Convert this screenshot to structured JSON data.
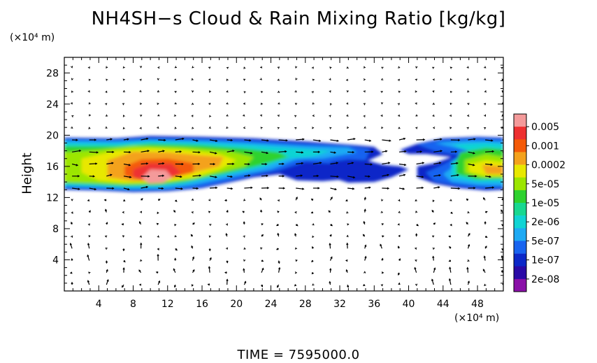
{
  "chart_data": {
    "type": "heatmap",
    "title": "NH4SH−s Cloud & Rain Mixing Ratio [kg/kg]",
    "ylabel": "Height",
    "x_unit": "(×10⁴ m)",
    "y_unit": "(×10⁴ m)",
    "xlim": [
      0,
      51
    ],
    "ylim": [
      0,
      30
    ],
    "x_ticks": [
      4,
      8,
      12,
      16,
      20,
      24,
      28,
      32,
      36,
      40,
      44,
      48
    ],
    "y_ticks": [
      4,
      8,
      12,
      16,
      20,
      24,
      28
    ],
    "colorbar": {
      "labels": [
        "0.005",
        "0.001",
        "0.0002",
        "5e-05",
        "1e-05",
        "2e-06",
        "5e-07",
        "1e-07",
        "2e-08"
      ],
      "colors": [
        "#f49a9a",
        "#ee3030",
        "#f45a08",
        "#f4a21c",
        "#e8e800",
        "#9ce600",
        "#2ed22e",
        "#18d890",
        "#10d4d4",
        "#1eaaf4",
        "#1864f0",
        "#0c28c8",
        "#2a0aa6",
        "#8a10a8"
      ]
    },
    "cloud_layer": {
      "description_regions": [
        {
          "x_range": [
            0,
            37
          ],
          "y_range": [
            13,
            20
          ],
          "peak_level": "0.005",
          "peak_x": [
            9,
            13
          ],
          "peak_y": [
            13.5,
            16
          ]
        },
        {
          "x_range": [
            38,
            51
          ],
          "y_range": [
            13,
            20
          ],
          "peak_level": "0.0002",
          "peak_x": [
            45,
            51
          ],
          "peak_y": [
            14,
            17
          ]
        }
      ]
    },
    "vector_field": "wind arrows"
  },
  "time": {
    "text": "TIME  =  7595000.0"
  }
}
